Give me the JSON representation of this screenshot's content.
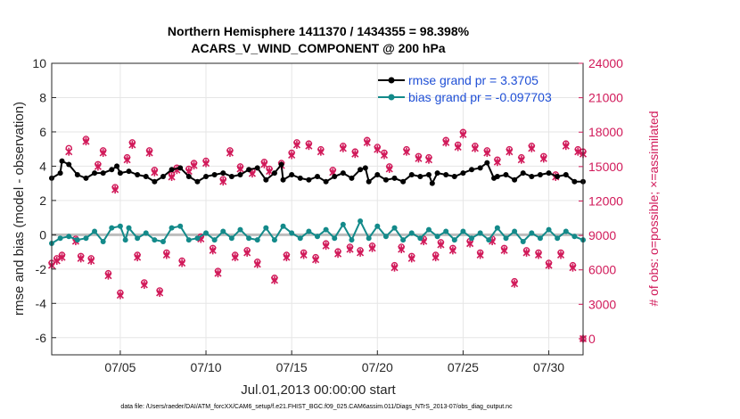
{
  "chart_data": {
    "type": "line",
    "title_line1": "Northern Hemisphere 1411370 / 1434355 = 98.398%",
    "title_line2": "ACARS_V_WIND_COMPONENT @ 200 hPa",
    "xlabel": "Jul.01,2013 00:00:00 start",
    "ylabel_left": "rmse and bias (model - observation)",
    "ylabel_right": "# of obs: o=possible; ×=assimilated",
    "footnote": "data file: /Users/raeder/DAI/ATM_forcXX/CAM6_setup/f.e21.FHIST_BGC.f09_025.CAM6assim.011/Diags_NTrS_2013-07/obs_diag_output.nc",
    "xlim": [
      1,
      32
    ],
    "ylim_left": [
      -7,
      10
    ],
    "ylim_right": [
      -1400,
      24000
    ],
    "x_ticks": [
      5,
      10,
      15,
      20,
      25,
      30
    ],
    "x_tick_labels": [
      "07/05",
      "07/10",
      "07/15",
      "07/20",
      "07/25",
      "07/30"
    ],
    "y_left_ticks": [
      -6,
      -4,
      -2,
      0,
      2,
      4,
      6,
      8,
      10
    ],
    "y_left_tick_labels": [
      "-6",
      "-4",
      "-2",
      "0",
      "2",
      "4",
      "6",
      "8",
      "10"
    ],
    "y_right_ticks": [
      0,
      3000,
      6000,
      9000,
      12000,
      15000,
      18000,
      21000,
      24000
    ],
    "y_right_tick_labels": [
      "0",
      "3000",
      "6000",
      "9000",
      "12000",
      "15000",
      "18000",
      "21000",
      "24000"
    ],
    "legend": [
      {
        "name": "rmse grand pr = 3.3705",
        "color": "#000000"
      },
      {
        "name": "bias grand pr = -0.097703",
        "color": "#138a8a"
      }
    ],
    "colors": {
      "rmse": "#000000",
      "bias": "#138a8a",
      "obs": "#d11a5a",
      "zero_line": "#bdbdbd",
      "grid": "#e6e6e6"
    },
    "rmse_nodes": [
      [
        1.0,
        3.3
      ],
      [
        1.5,
        3.6
      ],
      [
        1.6,
        4.3
      ],
      [
        2.0,
        4.1
      ],
      [
        2.5,
        3.5
      ],
      [
        3.0,
        3.3
      ],
      [
        3.5,
        3.6
      ],
      [
        4.0,
        3.6
      ],
      [
        4.5,
        3.8
      ],
      [
        4.8,
        4.0
      ],
      [
        5.0,
        3.6
      ],
      [
        5.5,
        3.7
      ],
      [
        6.0,
        3.5
      ],
      [
        6.5,
        3.4
      ],
      [
        7.0,
        3.1
      ],
      [
        7.5,
        3.4
      ],
      [
        8.0,
        3.8
      ],
      [
        8.5,
        3.9
      ],
      [
        9.0,
        3.4
      ],
      [
        9.5,
        3.1
      ],
      [
        10.0,
        3.4
      ],
      [
        10.5,
        3.5
      ],
      [
        11.0,
        3.6
      ],
      [
        11.5,
        3.4
      ],
      [
        12.0,
        3.5
      ],
      [
        12.5,
        3.8
      ],
      [
        13.0,
        3.9
      ],
      [
        13.5,
        3.2
      ],
      [
        14.0,
        3.6
      ],
      [
        14.4,
        4.1
      ],
      [
        14.5,
        3.2
      ],
      [
        15.0,
        3.5
      ],
      [
        15.5,
        3.3
      ],
      [
        16.0,
        3.2
      ],
      [
        16.5,
        3.4
      ],
      [
        17.0,
        3.1
      ],
      [
        17.5,
        3.4
      ],
      [
        18.0,
        3.6
      ],
      [
        18.5,
        3.3
      ],
      [
        19.0,
        3.8
      ],
      [
        19.3,
        3.9
      ],
      [
        19.5,
        3.1
      ],
      [
        20.0,
        3.5
      ],
      [
        20.5,
        3.2
      ],
      [
        21.0,
        3.3
      ],
      [
        21.5,
        3.1
      ],
      [
        22.0,
        3.5
      ],
      [
        22.5,
        3.4
      ],
      [
        23.0,
        3.5
      ],
      [
        23.2,
        3.0
      ],
      [
        23.5,
        3.6
      ],
      [
        24.0,
        3.5
      ],
      [
        24.5,
        3.4
      ],
      [
        25.0,
        3.6
      ],
      [
        25.5,
        3.8
      ],
      [
        26.0,
        3.9
      ],
      [
        26.4,
        4.2
      ],
      [
        26.8,
        3.3
      ],
      [
        27.0,
        3.4
      ],
      [
        27.5,
        3.5
      ],
      [
        28.0,
        3.2
      ],
      [
        28.5,
        3.6
      ],
      [
        29.0,
        3.4
      ],
      [
        29.5,
        3.5
      ],
      [
        30.0,
        3.6
      ],
      [
        30.5,
        3.4
      ],
      [
        31.0,
        3.5
      ],
      [
        31.5,
        3.1
      ],
      [
        32.0,
        3.1
      ]
    ],
    "bias_nodes": [
      [
        1.0,
        -0.5
      ],
      [
        1.5,
        -0.2
      ],
      [
        2.0,
        -0.1
      ],
      [
        2.5,
        -0.3
      ],
      [
        3.0,
        -0.2
      ],
      [
        3.5,
        0.2
      ],
      [
        4.0,
        -0.4
      ],
      [
        4.5,
        0.4
      ],
      [
        5.0,
        0.5
      ],
      [
        5.3,
        -0.3
      ],
      [
        5.5,
        0.4
      ],
      [
        6.0,
        -0.2
      ],
      [
        6.5,
        0.1
      ],
      [
        7.0,
        -0.3
      ],
      [
        7.5,
        -0.4
      ],
      [
        8.0,
        0.4
      ],
      [
        8.5,
        0.5
      ],
      [
        9.0,
        -0.3
      ],
      [
        9.5,
        -0.2
      ],
      [
        10.0,
        0.1
      ],
      [
        10.5,
        -0.3
      ],
      [
        11.0,
        0.2
      ],
      [
        11.5,
        -0.2
      ],
      [
        12.0,
        0.3
      ],
      [
        12.5,
        -0.2
      ],
      [
        13.0,
        -0.3
      ],
      [
        13.5,
        0.4
      ],
      [
        14.0,
        -0.3
      ],
      [
        14.5,
        0.5
      ],
      [
        15.0,
        0.1
      ],
      [
        15.5,
        -0.2
      ],
      [
        16.0,
        0.2
      ],
      [
        16.5,
        -0.1
      ],
      [
        17.0,
        0.3
      ],
      [
        17.5,
        -0.2
      ],
      [
        18.0,
        0.6
      ],
      [
        18.5,
        -0.3
      ],
      [
        19.0,
        0.8
      ],
      [
        19.5,
        -0.2
      ],
      [
        20.0,
        0.5
      ],
      [
        20.5,
        -0.1
      ],
      [
        21.0,
        0.4
      ],
      [
        21.5,
        -0.3
      ],
      [
        22.0,
        0.1
      ],
      [
        22.5,
        -0.2
      ],
      [
        23.0,
        0.3
      ],
      [
        23.5,
        -0.1
      ],
      [
        24.0,
        0.2
      ],
      [
        24.5,
        -0.3
      ],
      [
        25.0,
        0.2
      ],
      [
        25.5,
        -0.2
      ],
      [
        26.0,
        0.1
      ],
      [
        26.5,
        -0.3
      ],
      [
        27.0,
        0.4
      ],
      [
        27.5,
        -0.2
      ],
      [
        28.0,
        0.2
      ],
      [
        28.5,
        -0.4
      ],
      [
        29.0,
        0.1
      ],
      [
        29.5,
        -0.2
      ],
      [
        30.0,
        0.3
      ],
      [
        30.5,
        -0.2
      ],
      [
        31.0,
        0.2
      ],
      [
        31.5,
        -0.1
      ],
      [
        32.0,
        -0.3
      ]
    ],
    "obs_possible": [
      [
        1.0,
        6600
      ],
      [
        1.3,
        7000
      ],
      [
        1.6,
        7300
      ],
      [
        2.0,
        16600
      ],
      [
        2.4,
        8700
      ],
      [
        2.7,
        7200
      ],
      [
        3.0,
        17400
      ],
      [
        3.3,
        7000
      ],
      [
        3.7,
        15200
      ],
      [
        4.0,
        16400
      ],
      [
        4.3,
        5700
      ],
      [
        4.7,
        13200
      ],
      [
        5.0,
        4000
      ],
      [
        5.4,
        15800
      ],
      [
        5.7,
        17100
      ],
      [
        6.0,
        7300
      ],
      [
        6.4,
        4900
      ],
      [
        6.7,
        16400
      ],
      [
        7.0,
        14700
      ],
      [
        7.3,
        4200
      ],
      [
        7.7,
        7500
      ],
      [
        8.0,
        14300
      ],
      [
        8.3,
        14900
      ],
      [
        8.6,
        6800
      ],
      [
        9.0,
        14800
      ],
      [
        9.3,
        15300
      ],
      [
        9.7,
        8900
      ],
      [
        10.0,
        15500
      ],
      [
        10.4,
        7900
      ],
      [
        10.7,
        5900
      ],
      [
        11.0,
        13900
      ],
      [
        11.4,
        16400
      ],
      [
        11.7,
        7300
      ],
      [
        12.0,
        15000
      ],
      [
        12.4,
        7700
      ],
      [
        12.7,
        14600
      ],
      [
        13.0,
        6700
      ],
      [
        13.4,
        15400
      ],
      [
        13.7,
        14800
      ],
      [
        14.0,
        5300
      ],
      [
        14.4,
        15300
      ],
      [
        14.7,
        7300
      ],
      [
        15.0,
        16200
      ],
      [
        15.3,
        17100
      ],
      [
        15.7,
        7500
      ],
      [
        16.0,
        17000
      ],
      [
        16.4,
        7100
      ],
      [
        16.7,
        16500
      ],
      [
        17.0,
        8300
      ],
      [
        17.4,
        14700
      ],
      [
        17.7,
        7600
      ],
      [
        18.0,
        16800
      ],
      [
        18.4,
        8000
      ],
      [
        18.7,
        16300
      ],
      [
        19.0,
        7700
      ],
      [
        19.4,
        17300
      ],
      [
        19.7,
        8100
      ],
      [
        20.0,
        16700
      ],
      [
        20.4,
        16200
      ],
      [
        20.7,
        15000
      ],
      [
        21.0,
        6400
      ],
      [
        21.4,
        8000
      ],
      [
        21.7,
        16500
      ],
      [
        22.0,
        7200
      ],
      [
        22.4,
        15900
      ],
      [
        22.7,
        8700
      ],
      [
        23.0,
        15800
      ],
      [
        23.4,
        7300
      ],
      [
        23.7,
        8400
      ],
      [
        24.0,
        17300
      ],
      [
        24.4,
        7900
      ],
      [
        24.7,
        16900
      ],
      [
        25.0,
        18000
      ],
      [
        25.4,
        8500
      ],
      [
        25.7,
        16800
      ],
      [
        26.0,
        7500
      ],
      [
        26.4,
        16400
      ],
      [
        26.7,
        8700
      ],
      [
        27.0,
        15600
      ],
      [
        27.4,
        7900
      ],
      [
        27.7,
        16500
      ],
      [
        28.0,
        5000
      ],
      [
        28.4,
        15800
      ],
      [
        28.7,
        7700
      ],
      [
        29.0,
        16800
      ],
      [
        29.4,
        7500
      ],
      [
        29.7,
        15900
      ],
      [
        30.0,
        6600
      ],
      [
        30.4,
        14300
      ],
      [
        30.7,
        7500
      ],
      [
        31.0,
        17000
      ],
      [
        31.4,
        6400
      ],
      [
        31.7,
        16500
      ],
      [
        32.0,
        16300
      ],
      [
        32.0,
        0
      ]
    ],
    "obs_assimilated": [
      [
        1.0,
        6400
      ],
      [
        1.3,
        6800
      ],
      [
        1.6,
        7100
      ],
      [
        2.0,
        16300
      ],
      [
        2.4,
        8500
      ],
      [
        2.7,
        7000
      ],
      [
        3.0,
        17200
      ],
      [
        3.3,
        6800
      ],
      [
        3.7,
        15000
      ],
      [
        4.0,
        16200
      ],
      [
        4.3,
        5500
      ],
      [
        4.7,
        13000
      ],
      [
        5.0,
        3800
      ],
      [
        5.4,
        15600
      ],
      [
        5.7,
        16900
      ],
      [
        6.0,
        7100
      ],
      [
        6.4,
        4700
      ],
      [
        6.7,
        16200
      ],
      [
        7.0,
        14500
      ],
      [
        7.3,
        4000
      ],
      [
        7.7,
        7300
      ],
      [
        8.0,
        14100
      ],
      [
        8.3,
        14700
      ],
      [
        8.6,
        6600
      ],
      [
        9.0,
        14600
      ],
      [
        9.3,
        15100
      ],
      [
        9.7,
        8700
      ],
      [
        10.0,
        15300
      ],
      [
        10.4,
        7700
      ],
      [
        10.7,
        5700
      ],
      [
        11.0,
        13700
      ],
      [
        11.4,
        16200
      ],
      [
        11.7,
        7100
      ],
      [
        12.0,
        14800
      ],
      [
        12.4,
        7500
      ],
      [
        12.7,
        14400
      ],
      [
        13.0,
        6500
      ],
      [
        13.4,
        15200
      ],
      [
        13.7,
        14600
      ],
      [
        14.0,
        5100
      ],
      [
        14.4,
        15100
      ],
      [
        14.7,
        7100
      ],
      [
        15.0,
        16000
      ],
      [
        15.3,
        16900
      ],
      [
        15.7,
        7300
      ],
      [
        16.0,
        16800
      ],
      [
        16.4,
        6900
      ],
      [
        16.7,
        16300
      ],
      [
        17.0,
        8100
      ],
      [
        17.4,
        14500
      ],
      [
        17.7,
        7400
      ],
      [
        18.0,
        16600
      ],
      [
        18.4,
        7800
      ],
      [
        18.7,
        16100
      ],
      [
        19.0,
        7500
      ],
      [
        19.4,
        17100
      ],
      [
        19.7,
        7900
      ],
      [
        20.0,
        16500
      ],
      [
        20.4,
        16000
      ],
      [
        20.7,
        14800
      ],
      [
        21.0,
        6200
      ],
      [
        21.4,
        7800
      ],
      [
        21.7,
        16300
      ],
      [
        22.0,
        7000
      ],
      [
        22.4,
        15700
      ],
      [
        22.7,
        8500
      ],
      [
        23.0,
        15600
      ],
      [
        23.4,
        7100
      ],
      [
        23.7,
        8200
      ],
      [
        24.0,
        17100
      ],
      [
        24.4,
        7700
      ],
      [
        24.7,
        16700
      ],
      [
        25.0,
        17800
      ],
      [
        25.4,
        8300
      ],
      [
        25.7,
        16600
      ],
      [
        26.0,
        7300
      ],
      [
        26.4,
        16200
      ],
      [
        26.7,
        8500
      ],
      [
        27.0,
        15400
      ],
      [
        27.4,
        7700
      ],
      [
        27.7,
        16300
      ],
      [
        28.0,
        4800
      ],
      [
        28.4,
        15600
      ],
      [
        28.7,
        7500
      ],
      [
        29.0,
        16600
      ],
      [
        29.4,
        7300
      ],
      [
        29.7,
        15700
      ],
      [
        30.0,
        6400
      ],
      [
        30.4,
        14100
      ],
      [
        30.7,
        7300
      ],
      [
        31.0,
        16800
      ],
      [
        31.4,
        6200
      ],
      [
        31.7,
        16300
      ],
      [
        32.0,
        16100
      ],
      [
        32.0,
        0
      ]
    ]
  }
}
